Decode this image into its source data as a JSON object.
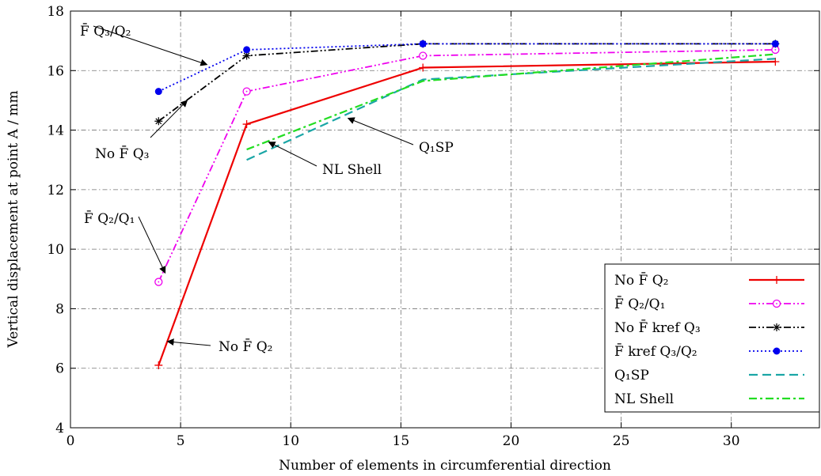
{
  "chart_data": {
    "type": "line",
    "title": "",
    "xlabel": "Number of elements in circumferential direction",
    "ylabel": "Vertical displacement at point A / mm",
    "xlim": [
      0,
      34
    ],
    "ylim": [
      4,
      18
    ],
    "xticks": [
      0,
      5,
      10,
      15,
      20,
      25,
      30
    ],
    "yticks": [
      4,
      6,
      8,
      10,
      12,
      14,
      16,
      18
    ],
    "grid": true,
    "legend_position": "bottom-right",
    "series": [
      {
        "name": "No F̄ Q₂",
        "color": "#ee0000",
        "line": "solid",
        "marker": "plus",
        "x": [
          4,
          8,
          16,
          32
        ],
        "y": [
          6.1,
          14.2,
          16.1,
          16.3
        ]
      },
      {
        "name": "F̄ Q₂/Q₁",
        "color": "#ee00ee",
        "line": "dash-dot-dot",
        "marker": "open-circle",
        "x": [
          4,
          8,
          16,
          32
        ],
        "y": [
          8.9,
          15.3,
          16.5,
          16.7
        ]
      },
      {
        "name": "No F̄ kref Q₃",
        "color": "#000000",
        "line": "dash-dot-dot",
        "marker": "asterisk",
        "x": [
          4,
          8,
          16,
          32
        ],
        "y": [
          14.3,
          16.5,
          16.9,
          16.9
        ]
      },
      {
        "name": "F̄ kref Q₃/Q₂",
        "color": "#0000ee",
        "line": "dotted",
        "marker": "filled-circle",
        "x": [
          4,
          8,
          16,
          32
        ],
        "y": [
          15.3,
          16.7,
          16.9,
          16.9
        ]
      },
      {
        "name": "Q₁SP",
        "color": "#1aa6a6",
        "line": "dashed",
        "marker": "none",
        "x": [
          8,
          16,
          32
        ],
        "y": [
          13.0,
          15.7,
          16.4
        ]
      },
      {
        "name": "NL Shell",
        "color": "#22dd22",
        "line": "dash-dot",
        "marker": "none",
        "x": [
          8,
          16,
          32
        ],
        "y": [
          13.35,
          15.65,
          16.55
        ]
      }
    ],
    "annotations": [
      {
        "text": "F̄ Q₃/Q₂",
        "points_to": [
          6.2,
          16.2
        ]
      },
      {
        "text": "No F̄ Q₃",
        "points_to": [
          5.3,
          15.0
        ]
      },
      {
        "text": "F̄ Q₂/Q₁",
        "points_to": [
          4.3,
          9.2
        ]
      },
      {
        "text": "No F̄ Q₂",
        "points_to": [
          4.4,
          6.9
        ]
      },
      {
        "text": "NL Shell",
        "points_to": [
          9.0,
          13.6
        ]
      },
      {
        "text": "Q₁SP",
        "points_to": [
          12.6,
          14.4
        ]
      }
    ]
  }
}
